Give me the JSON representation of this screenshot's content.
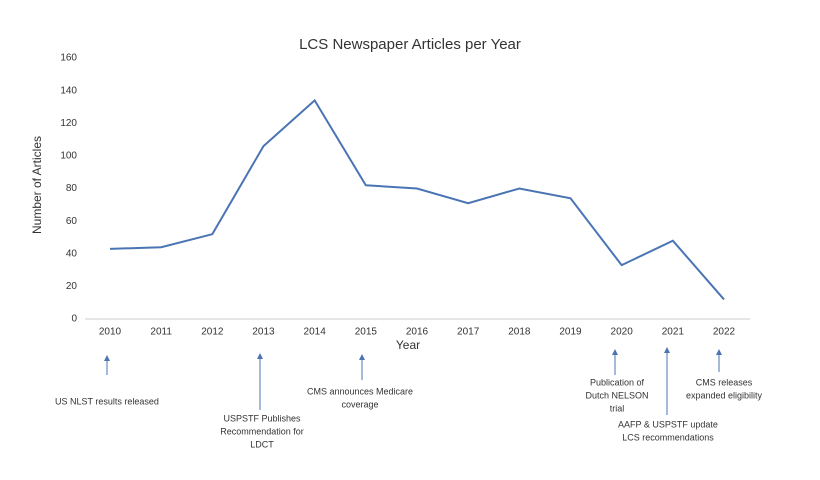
{
  "chart_data": {
    "type": "line",
    "title": "LCS Newspaper Articles per Year",
    "x_label": "Year",
    "y_label": "Number of Articles",
    "categories": [
      "2010",
      "2011",
      "2012",
      "2013",
      "2014",
      "2015",
      "2016",
      "2017",
      "2018",
      "2019",
      "2020",
      "2021",
      "2022"
    ],
    "series": [
      {
        "name": "Articles",
        "color": "#4a74b4",
        "values": [
          43,
          44,
          52,
          106,
          134,
          82,
          80,
          71,
          80,
          74,
          33,
          48,
          12
        ]
      }
    ],
    "ylim": [
      0,
      160
    ],
    "yticks": [
      0,
      20,
      40,
      60,
      80,
      100,
      120,
      140,
      160
    ],
    "grid": false,
    "annotations": [
      [
        "US NLST results released"
      ],
      [
        "USPSTF Publishes",
        "Recommendation for",
        "LDCT"
      ],
      [
        "CMS announces Medicare",
        "coverage"
      ],
      [
        "Publication of",
        "Dutch NELSON",
        "trial"
      ],
      [
        "AAFP & USPSTF update",
        "LCS  recommendations"
      ],
      [
        "CMS releases",
        "expanded eligibility"
      ]
    ]
  }
}
